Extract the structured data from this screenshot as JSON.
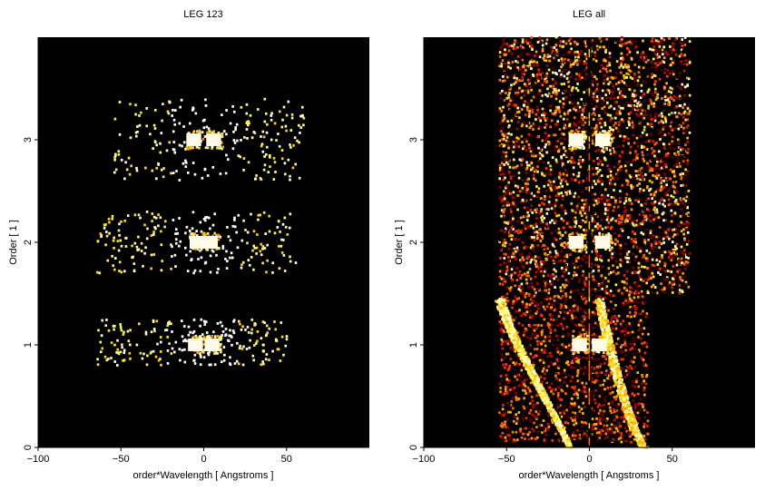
{
  "chart_data": [
    {
      "type": "heatmap",
      "title": "LEG 123",
      "xlabel": "order*Wavelength [ Angstroms ]",
      "ylabel": "Order [ 1 ]",
      "xlim": [
        -100,
        100
      ],
      "ylim": [
        0,
        4
      ],
      "xticks": [
        -100,
        -50,
        0,
        50
      ],
      "yticks": [
        0,
        1,
        2,
        3
      ],
      "xtick_labels": [
        "−100",
        "−50",
        "0",
        "50"
      ],
      "ytick_labels": [
        "0",
        "1",
        "2",
        "3"
      ],
      "background": "#000000",
      "colormap": "heat",
      "hot_spots": [
        {
          "x": -6,
          "y": 3.0
        },
        {
          "x": 6,
          "y": 3.0
        },
        {
          "x": -4,
          "y": 2.0
        },
        {
          "x": 4,
          "y": 2.0
        },
        {
          "x": -5,
          "y": 1.0
        },
        {
          "x": 5,
          "y": 1.0
        }
      ],
      "speckle_bands": [
        {
          "y_min": 2.6,
          "y_max": 3.4,
          "x_min": -55,
          "x_max": 60
        },
        {
          "y_min": 1.7,
          "y_max": 2.3,
          "x_min": -65,
          "x_max": 55
        },
        {
          "y_min": 0.8,
          "y_max": 1.25,
          "x_min": -65,
          "x_max": 50
        }
      ]
    },
    {
      "type": "heatmap",
      "title": "LEG all",
      "xlabel": "order*Wavelength [ Angstroms ]",
      "ylabel": "Order [ 1 ]",
      "xlim": [
        -100,
        100
      ],
      "ylim": [
        0,
        4
      ],
      "xticks": [
        -100,
        -50,
        0,
        50
      ],
      "yticks": [
        0,
        1,
        2,
        3
      ],
      "xtick_labels": [
        "−100",
        "−50",
        "0",
        "50"
      ],
      "ytick_labels": [
        "0",
        "1",
        "2",
        "3"
      ],
      "background": "#000000",
      "colormap": "heat",
      "hot_spots": [
        {
          "x": -8,
          "y": 3.0
        },
        {
          "x": 8,
          "y": 3.0
        },
        {
          "x": -8,
          "y": 2.0
        },
        {
          "x": 8,
          "y": 2.0
        },
        {
          "x": -6,
          "y": 1.0
        },
        {
          "x": 6,
          "y": 1.0
        }
      ],
      "speckle_region": {
        "x_min": -55,
        "x_max": 60,
        "y_min": 0,
        "y_max": 4
      }
    }
  ]
}
